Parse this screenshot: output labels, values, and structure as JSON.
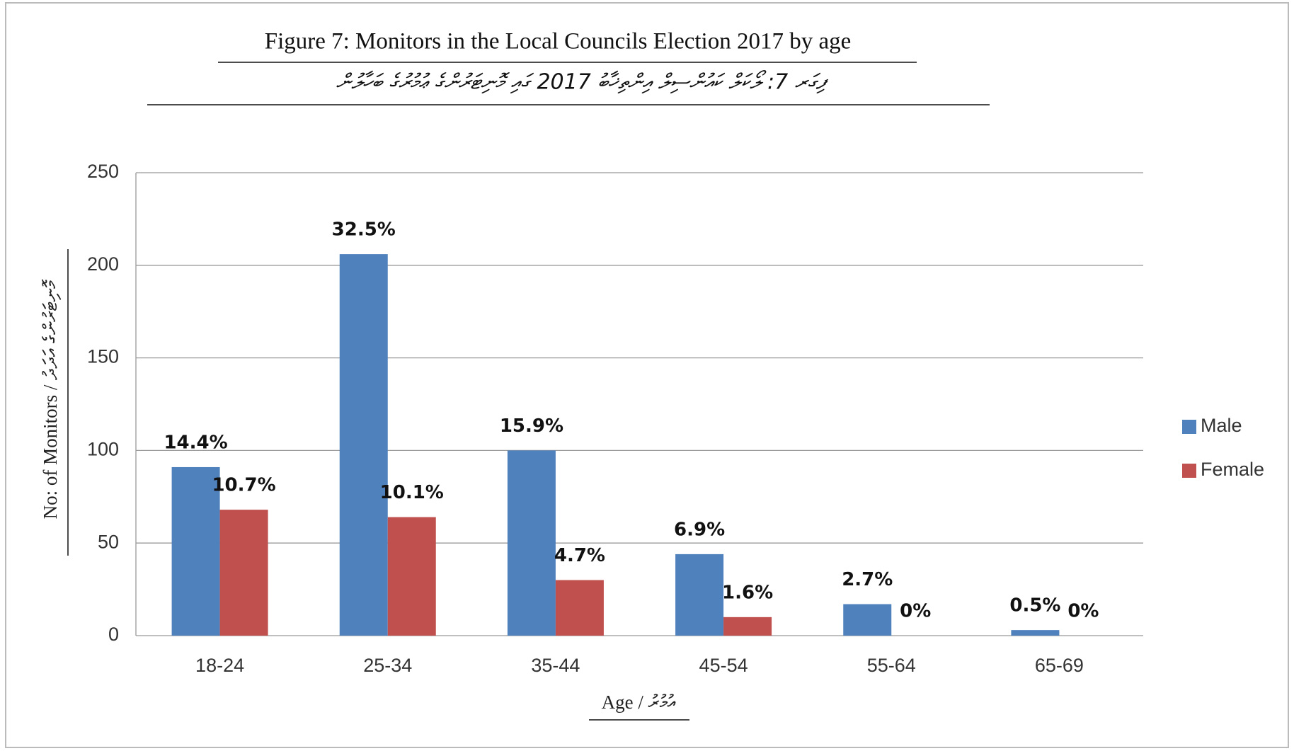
{
  "chart_data": {
    "type": "bar",
    "title": "Figure 7: Monitors in the Local Councils Election 2017 by age",
    "subtitle": "ފިގަރ 7: ލޯކަލް ކައުންސިލް އިންތިޚާބު 2017 ގައި މޮނިޓަރުންގެ ޢުމުރުގެ ބަހާލުން",
    "y_label": "No: of Monitors / މޮނިޓަރުންގެ އަދަދު",
    "x_label": "Age / އުމުރު",
    "categories": [
      "18-24",
      "25-34",
      "35-44",
      "45-54",
      "55-64",
      "65-69"
    ],
    "series": [
      {
        "name": "Male",
        "color": "#4f81bd",
        "values": [
          91,
          206,
          100,
          44,
          17,
          3
        ],
        "data_labels": [
          "14.4%",
          "32.5%",
          "15.9%",
          "6.9%",
          "2.7%",
          "0.5%"
        ]
      },
      {
        "name": "Female",
        "color": "#c0504d",
        "values": [
          68,
          64,
          30,
          10,
          0,
          0
        ],
        "data_labels": [
          "10.7%",
          "10.1%",
          "4.7%",
          "1.6%",
          "0%",
          "0%"
        ]
      }
    ],
    "ylim": [
      0,
      250
    ],
    "yticks": [
      0,
      50,
      100,
      150,
      200,
      250
    ],
    "grid": true,
    "legend": "right"
  }
}
